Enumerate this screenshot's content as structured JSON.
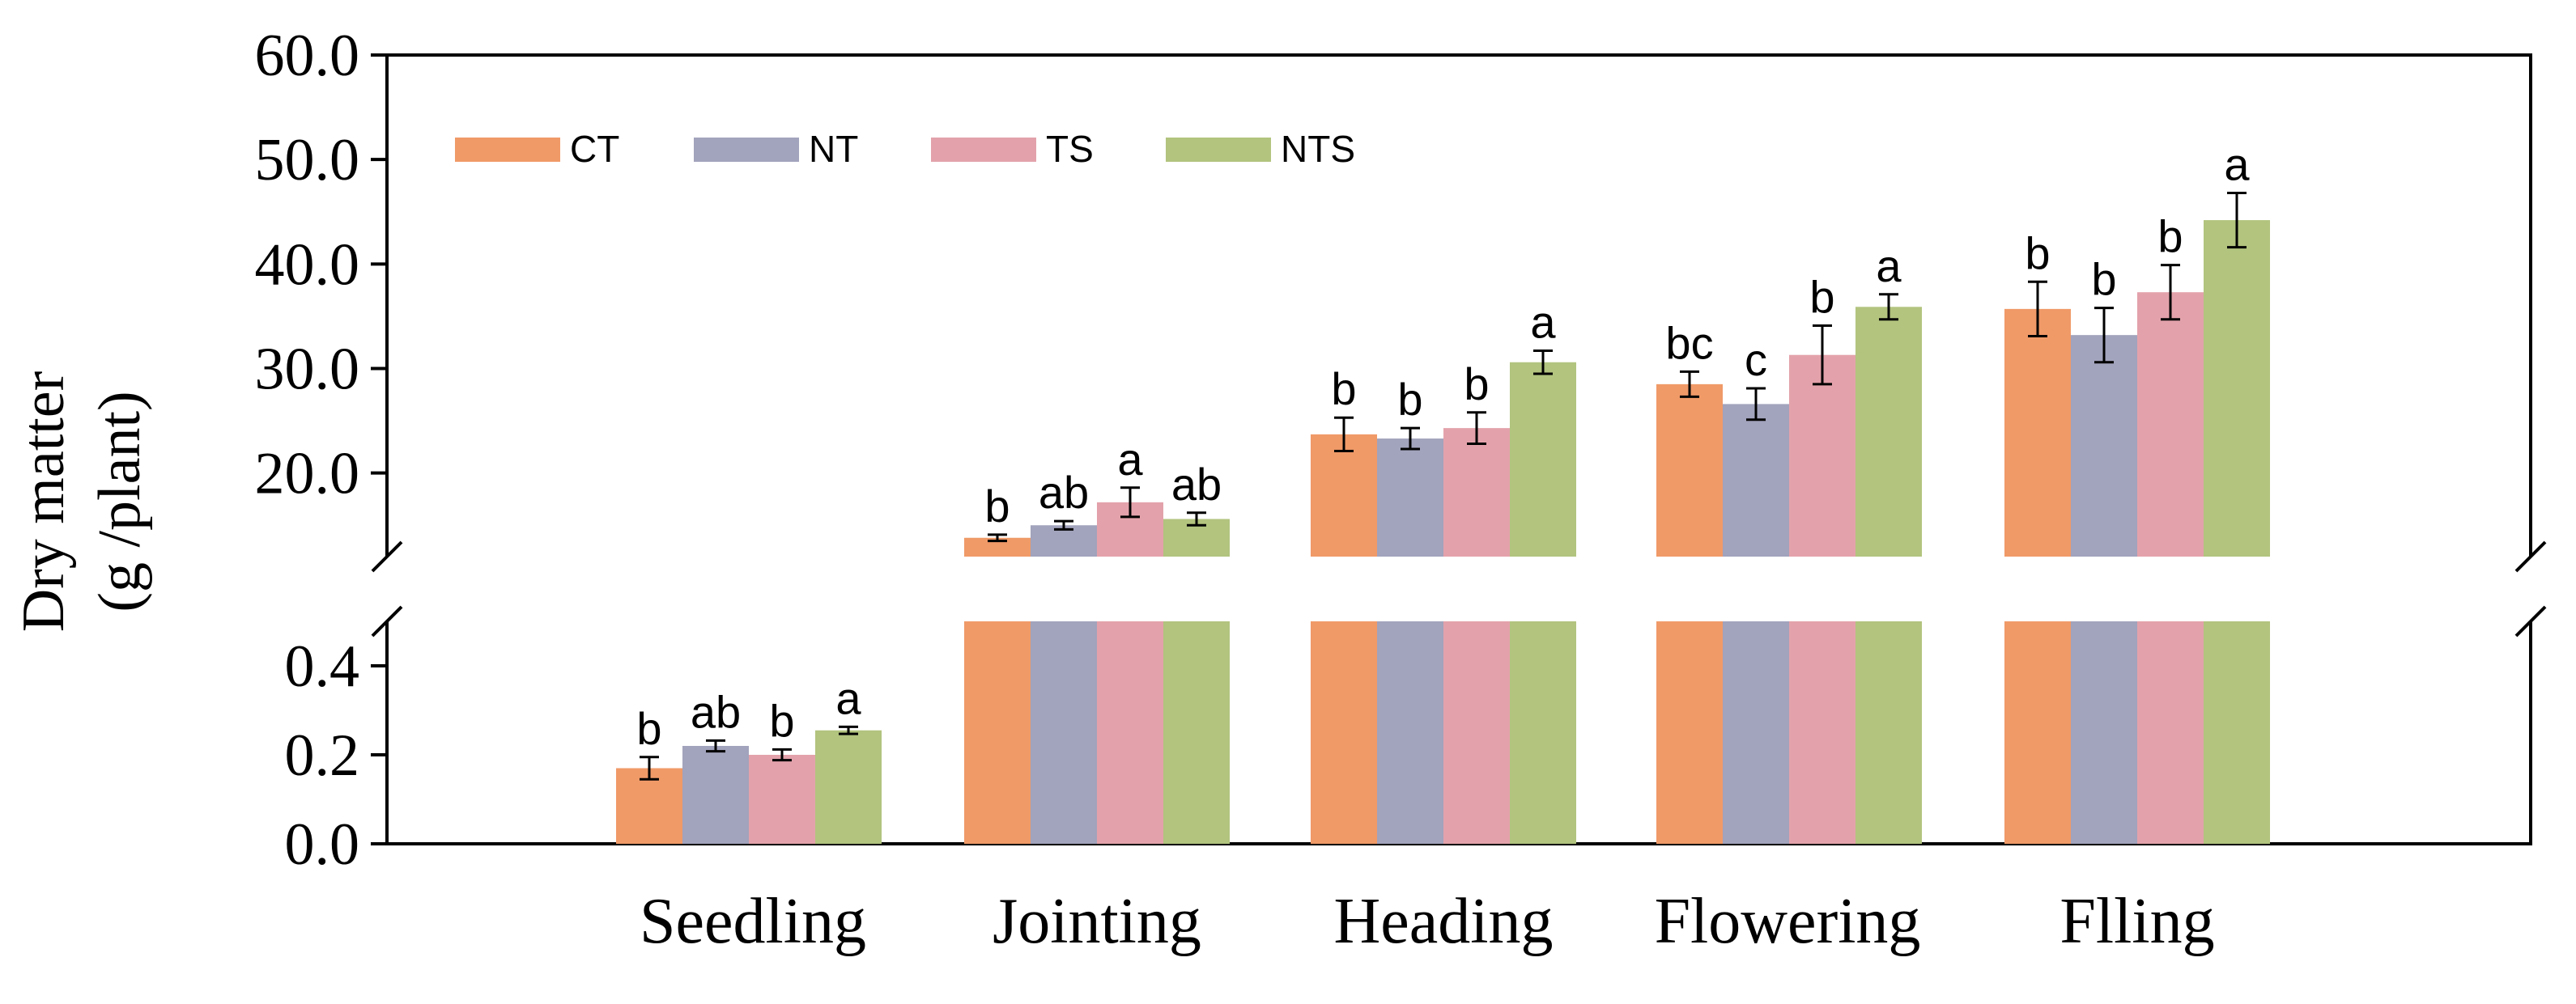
{
  "chart_data": {
    "type": "bar",
    "ylabel_lines": [
      "Dry matter",
      "(g /plant)"
    ],
    "xlabel": "",
    "categories": [
      "Seedling",
      "Jointing",
      "Heading",
      "Flowering",
      "Flling"
    ],
    "series": [
      {
        "name": "CT",
        "color": "#F09A68",
        "values": [
          0.17,
          13.8,
          23.7,
          28.5,
          35.7
        ],
        "errors": [
          0.025,
          0.3,
          1.6,
          1.2,
          2.6
        ],
        "letters": [
          "b",
          "b",
          "b",
          "bc",
          "b"
        ]
      },
      {
        "name": "NT",
        "color": "#A2A3BC",
        "values": [
          0.22,
          15.0,
          23.3,
          26.6,
          33.2
        ],
        "errors": [
          0.012,
          0.4,
          1.0,
          1.5,
          2.6
        ],
        "letters": [
          "ab",
          "ab",
          "b",
          "c",
          "b"
        ]
      },
      {
        "name": "TS",
        "color": "#E3A2AB",
        "values": [
          0.2,
          17.2,
          24.3,
          31.3,
          37.3
        ],
        "errors": [
          0.012,
          1.4,
          1.5,
          2.8,
          2.6
        ],
        "letters": [
          "b",
          "a",
          "b",
          "b",
          "b"
        ]
      },
      {
        "name": "NTS",
        "color": "#B2C47E",
        "values": [
          0.255,
          15.6,
          30.6,
          35.9,
          44.2
        ],
        "errors": [
          0.008,
          0.6,
          1.1,
          1.2,
          2.6
        ],
        "letters": [
          "a",
          "ab",
          "a",
          "a",
          "a"
        ]
      }
    ],
    "upper_axis": {
      "ylim": [
        12.0,
        60.0
      ],
      "ticks": [
        "20.0",
        "30.0",
        "40.0",
        "50.0",
        "60.0"
      ],
      "tick_values": [
        20,
        30,
        40,
        50,
        60
      ]
    },
    "lower_axis": {
      "ylim": [
        0.0,
        0.5
      ],
      "ticks": [
        "0.0",
        "0.2",
        "0.4"
      ],
      "tick_values": [
        0.0,
        0.2,
        0.4
      ]
    },
    "axis_break": true,
    "legend": {
      "position": "top-left",
      "entries": [
        "CT",
        "NT",
        "TS",
        "NTS"
      ]
    }
  }
}
